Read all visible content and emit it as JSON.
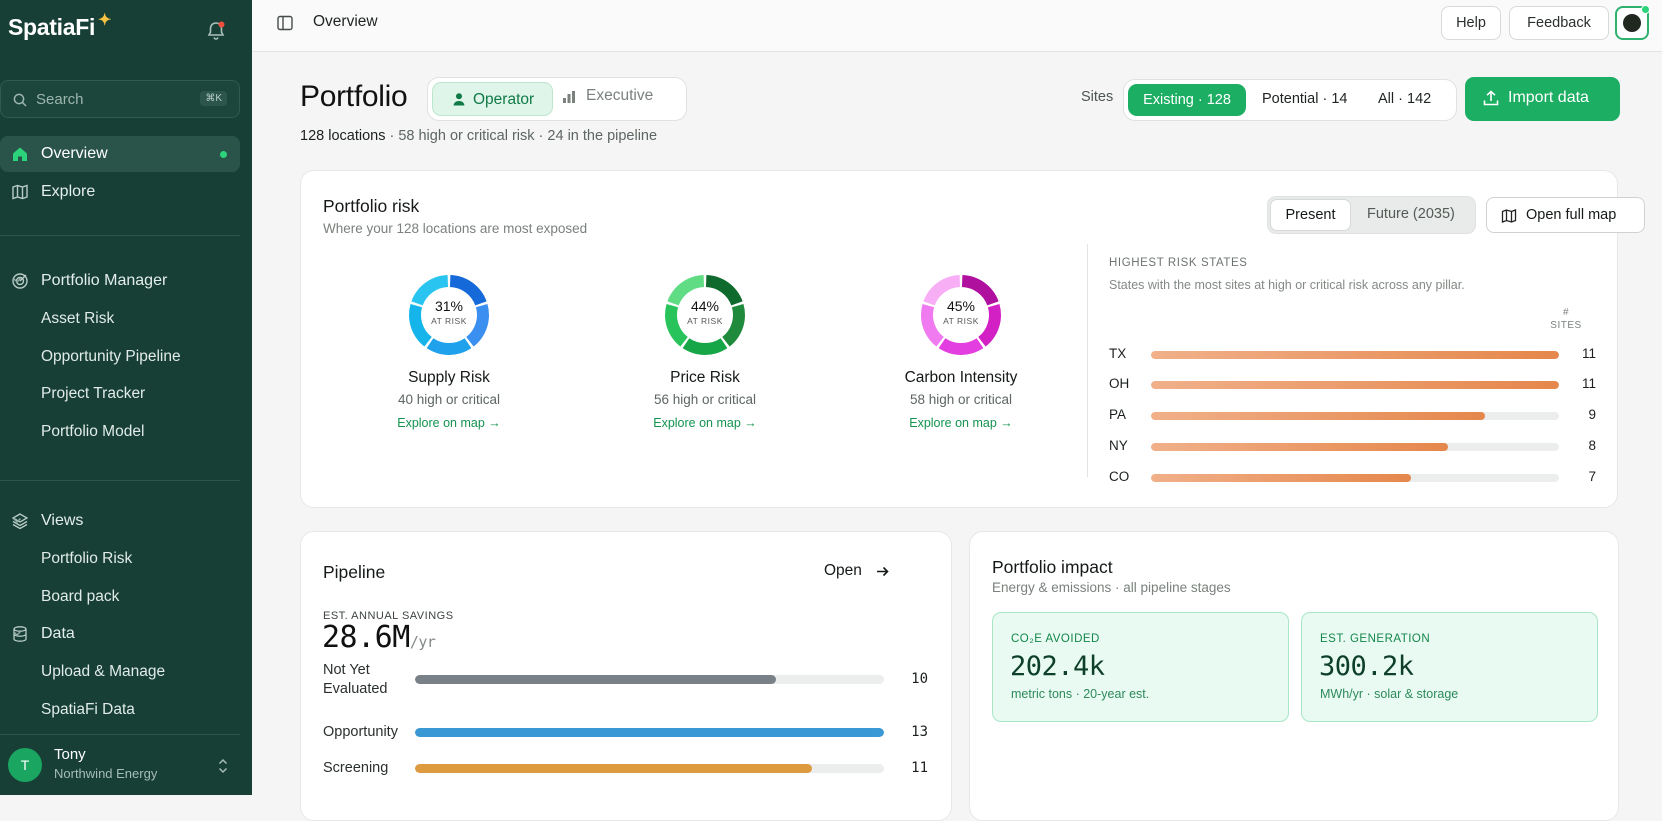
{
  "app": {
    "name": "SpatiaFi"
  },
  "sidebar": {
    "search_placeholder": "Search",
    "search_shortcut": "⌘K",
    "nav": [
      {
        "label": "Overview",
        "icon": "home-icon",
        "active": true
      },
      {
        "label": "Explore",
        "icon": "map-icon"
      }
    ],
    "sections": [
      {
        "label": "Portfolio Manager",
        "icon": "target-icon",
        "items": [
          "Asset Risk",
          "Opportunity Pipeline",
          "Project Tracker",
          "Portfolio Model"
        ]
      },
      {
        "label": "Views",
        "icon": "layers-icon",
        "items": [
          "Portfolio Risk",
          "Board pack"
        ]
      },
      {
        "label": "Data",
        "icon": "database-icon",
        "items": [
          "Upload & Manage",
          "SpatiaFi Data"
        ]
      }
    ],
    "user": {
      "initial": "T",
      "name": "Tony",
      "org": "Northwind Energy"
    }
  },
  "topbar": {
    "breadcrumb": "Overview",
    "help": "Help",
    "feedback": "Feedback"
  },
  "page": {
    "title": "Portfolio",
    "modes": [
      "Operator",
      "Executive"
    ],
    "active_mode": "Operator",
    "summary_locations": "128 locations",
    "summary_rest": " · 58 high or critical risk · 24 in the pipeline",
    "sites_label": "Sites",
    "site_filters": [
      "Existing · 128",
      "Potential · 14",
      "All · 142"
    ],
    "active_site_filter": "Existing · 128",
    "import_label": "Import data"
  },
  "risk": {
    "title": "Portfolio risk",
    "subtitle": "Where your 128 locations are most exposed",
    "time_options": [
      "Present",
      "Future (2035)"
    ],
    "active_time": "Present",
    "open_map": "Open full map",
    "metrics": [
      {
        "name": "Supply Risk",
        "pct": "31%",
        "at_risk": "AT RISK",
        "count": "40 high or critical",
        "link": "Explore on map →",
        "colors": [
          "#1669d8",
          "#3b8ff0",
          "#1fa1ec",
          "#15b4ea",
          "#29c5f0"
        ]
      },
      {
        "name": "Price Risk",
        "pct": "44%",
        "at_risk": "AT RISK",
        "count": "56 high or critical",
        "link": "Explore on map →",
        "colors": [
          "#0f6b2d",
          "#1f8a3c",
          "#16a547",
          "#29c35b",
          "#5fdc84"
        ]
      },
      {
        "name": "Carbon Intensity",
        "pct": "45%",
        "at_risk": "AT RISK",
        "count": "58 high or critical",
        "link": "Explore on map →",
        "colors": [
          "#b0109e",
          "#d220c4",
          "#e33ee0",
          "#f07aef",
          "#f7aef5"
        ]
      }
    ],
    "states_title": "HIGHEST RISK STATES",
    "states_subtitle": "States with the most sites at high or critical risk across any pillar.",
    "sites_col": "# SITES",
    "states": [
      {
        "state": "TX",
        "sites": 11
      },
      {
        "state": "OH",
        "sites": 11
      },
      {
        "state": "PA",
        "sites": 9
      },
      {
        "state": "NY",
        "sites": 8
      },
      {
        "state": "CO",
        "sites": 7
      }
    ],
    "states_max": 11
  },
  "pipeline": {
    "title": "Pipeline",
    "open": "Open",
    "savings_label": "EST. ANNUAL SAVINGS",
    "savings_value": "28.6M",
    "savings_unit": "/yr",
    "stages": [
      {
        "label": "Not Yet Evaluated",
        "count": 10,
        "color": "#7a8088"
      },
      {
        "label": "Opportunity",
        "count": 13,
        "color": "#3a99d4"
      },
      {
        "label": "Screening",
        "count": 11,
        "color": "#de9a3e"
      }
    ],
    "stages_max": 13
  },
  "impact": {
    "title": "Portfolio impact",
    "subtitle": "Energy & emissions · all pipeline stages",
    "cards": [
      {
        "label": "CO₂E AVOIDED",
        "value": "202.4k",
        "sub": "metric tons · 20-year est."
      },
      {
        "label": "EST. GENERATION",
        "value": "300.2k",
        "sub": "MWh/yr · solar & storage"
      }
    ]
  }
}
